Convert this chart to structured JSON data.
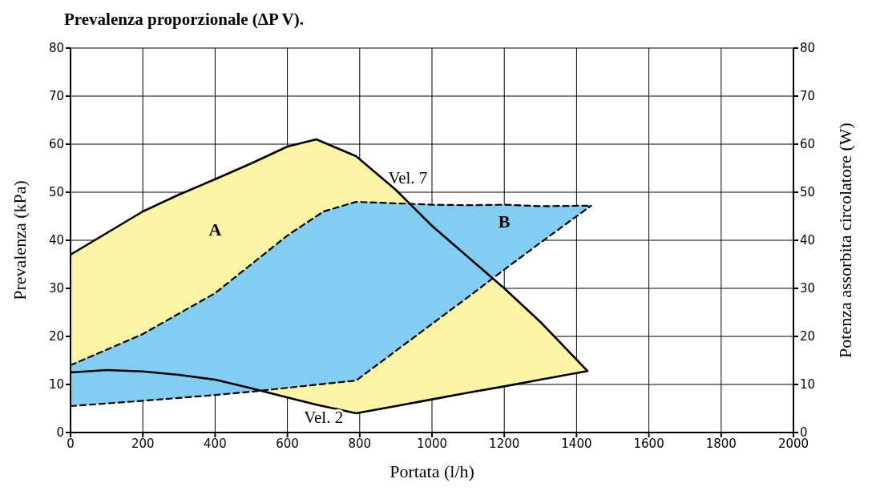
{
  "chart_data": {
    "type": "line",
    "title": "Prevalenza proporzionale (ΔP V).",
    "xlabel": "Portata (l/h)",
    "ylabel": "Prevalenza (kPa)",
    "y2label": "Potenza assorbita circolatore (W)",
    "xlim": [
      0,
      2000
    ],
    "xticks": [
      0,
      200,
      400,
      600,
      800,
      1000,
      1200,
      1400,
      1600,
      1800,
      2000
    ],
    "ylim": [
      0,
      80
    ],
    "yticks": [
      0,
      10,
      20,
      30,
      40,
      50,
      60,
      70,
      80
    ],
    "y2lim": [
      0,
      80
    ],
    "y2ticks": [
      0,
      10,
      20,
      30,
      40,
      50,
      60,
      70,
      80
    ],
    "grid": true,
    "series": [
      {
        "name": "A",
        "color": "#000000",
        "line_style": "solid",
        "x": [
          0,
          100,
          200,
          300,
          400,
          500,
          600,
          680,
          790,
          900,
          1000,
          1100,
          1200,
          1300,
          1430
        ],
        "values": [
          37,
          41.5,
          46,
          49.5,
          52.7,
          56,
          59.5,
          61,
          57.5,
          50.5,
          43,
          36.5,
          30,
          23,
          12.8
        ],
        "upper": [
          37,
          41.5,
          46,
          49.5,
          52.7,
          56,
          59.5,
          61,
          57.5,
          50.5,
          43,
          36.5,
          30,
          23,
          12.8
        ],
        "lower": [
          12.5,
          13,
          12.7,
          12,
          11,
          9.2,
          7.3,
          5.8,
          4,
          5.5,
          6.9,
          8.3,
          9.6,
          11,
          12.8
        ]
      },
      {
        "name": "B",
        "color": "#000000",
        "line_style": "dashed",
        "x": [
          0,
          200,
          400,
          500,
          600,
          700,
          790,
          900,
          1000,
          1100,
          1200,
          1300,
          1440
        ],
        "values": [
          14,
          20.5,
          29,
          35,
          41,
          46,
          48,
          47.7,
          47.4,
          47.3,
          47.4,
          47.1,
          47.2
        ],
        "upper": [
          14,
          20.5,
          29,
          35,
          41,
          46,
          48,
          47.7,
          47.4,
          47.3,
          47.4,
          47.1,
          47.2
        ],
        "lower": [
          5.5,
          6.6,
          7.8,
          8.5,
          9.3,
          10.1,
          10.8,
          17,
          22.6,
          28.2,
          33.9,
          39.5,
          47.2
        ]
      },
      {
        "color": "#000000",
        "line_style": "solid",
        "x": [
          0,
          100,
          200,
          300,
          400,
          500,
          600,
          680,
          790,
          900,
          1000,
          1100,
          1200,
          1300,
          1430
        ],
        "values": [
          12.5,
          13,
          12.7,
          12,
          11,
          9.2,
          7.3,
          5.8,
          4,
          5.5,
          6.9,
          8.3,
          9.6,
          11,
          12.8
        ]
      },
      {
        "color": "#000000",
        "line_style": "dashed",
        "x": [
          0,
          200,
          400,
          500,
          600,
          700,
          790,
          900,
          1000,
          1100,
          1200,
          1300,
          1440
        ],
        "values": [
          5.5,
          6.6,
          7.8,
          8.5,
          9.3,
          10.1,
          10.8,
          17,
          22.6,
          28.2,
          33.9,
          39.5,
          47.2
        ]
      }
    ],
    "annotations": [
      {
        "text": "Vel. 7",
        "x": 880,
        "y": 52
      },
      {
        "text": "Vel. 2",
        "x": 700,
        "y": 5.6
      }
    ]
  }
}
